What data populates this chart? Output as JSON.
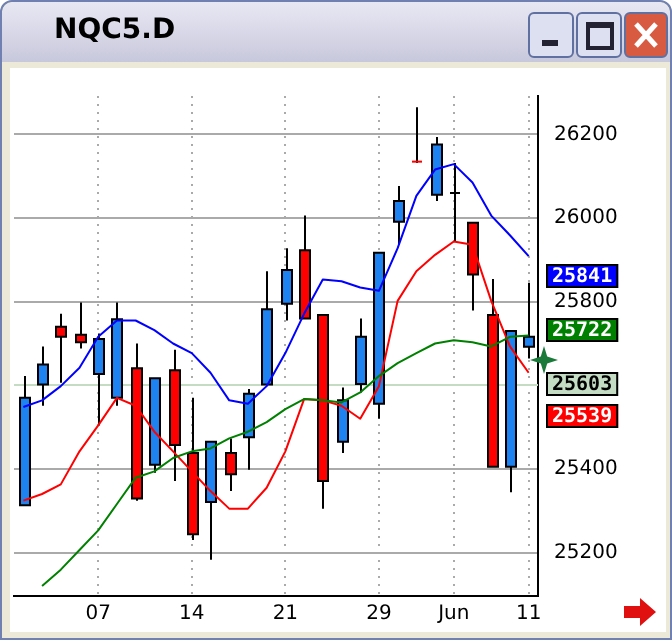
{
  "chart_data": {
    "type": "candlestick",
    "title": "NQC5.D",
    "categories": [
      null,
      null,
      null,
      null,
      "07",
      null,
      null,
      null,
      null,
      "14",
      null,
      null,
      null,
      null,
      "21",
      null,
      null,
      null,
      null,
      "29",
      null,
      null,
      null,
      "Jun",
      null,
      null,
      null,
      "11"
    ],
    "ohlc": [
      [
        25313,
        25622,
        25313,
        25570
      ],
      [
        25602,
        25693,
        25551,
        25650
      ],
      [
        25740,
        25771,
        25606,
        25716
      ],
      [
        25721,
        25798,
        25688,
        25703
      ],
      [
        25627,
        25724,
        25504,
        25711
      ],
      [
        25570,
        25798,
        25551,
        25758
      ],
      [
        25641,
        25700,
        25324,
        25329
      ],
      [
        25410,
        25617,
        25391,
        25617
      ],
      [
        25636,
        25685,
        25371,
        25457
      ],
      [
        25438,
        25570,
        25230,
        25244
      ],
      [
        25321,
        25465,
        25183,
        25465
      ],
      [
        25438,
        25473,
        25347,
        25387
      ],
      [
        25476,
        25591,
        25398,
        25580
      ],
      [
        25602,
        25873,
        25602,
        25782
      ],
      [
        25795,
        25928,
        25755,
        25876
      ],
      [
        25923,
        26006,
        25760,
        25760
      ],
      [
        25768,
        25768,
        25305,
        25371
      ],
      [
        25465,
        25595,
        25438,
        25564
      ],
      [
        25603,
        25760,
        25583,
        25716
      ],
      [
        25556,
        25917,
        25520,
        25917
      ],
      [
        25991,
        26077,
        25936,
        26041
      ],
      [
        26135,
        26265,
        26132,
        26135
      ],
      [
        26056,
        26194,
        26041,
        26176
      ],
      [
        26060,
        26132,
        25944,
        26060
      ],
      [
        25989,
        25989,
        25779,
        25865
      ],
      [
        25768,
        25854,
        25405,
        25405
      ],
      [
        25405,
        25730,
        25344,
        25730
      ],
      [
        25692,
        25845,
        25664,
        25716
      ]
    ],
    "colors": [
      "#1e82f0",
      "#1e82f0",
      "#ff0000",
      "#ff0000",
      "#1e82f0",
      "#1e82f0",
      "#ff0000",
      "#1e82f0",
      "#ff0000",
      "#ff0000",
      "#1e82f0",
      "#ff0000",
      "#1e82f0",
      "#1e82f0",
      "#1e82f0",
      "#ff0000",
      "#ff0000",
      "#1e82f0",
      "#1e82f0",
      "#1e82f0",
      "#1e82f0",
      "#ff0000",
      "#1e82f0",
      "#000000",
      "#ff0000",
      "#ff0000",
      "#1e82f0",
      "#1e82f0"
    ],
    "series": [
      {
        "type": "line",
        "color": "#0000ff",
        "values": [
          25548,
          25564,
          25598,
          25642,
          25716,
          25755,
          25755,
          25732,
          25700,
          25677,
          25630,
          25564,
          25556,
          25598,
          25677,
          25771,
          25853,
          25849,
          25834,
          25826,
          25928,
          26053,
          26116,
          26129,
          26085,
          26006,
          25959,
          25909
        ]
      },
      {
        "type": "line",
        "color": "#008000",
        "values": [
          null,
          25120,
          25159,
          25206,
          25253,
          25316,
          25379,
          25394,
          25426,
          25442,
          25449,
          25473,
          25489,
          25512,
          25543,
          25567,
          25564,
          25559,
          25583,
          25622,
          25653,
          25677,
          25700,
          25708,
          25703,
          25693,
          25716,
          25719
        ]
      },
      {
        "type": "line",
        "color": "#ff0000",
        "values": [
          25324,
          25340,
          25363,
          25442,
          25504,
          25570,
          25551,
          25489,
          25442,
          25394,
          25347,
          25305,
          25305,
          25355,
          25442,
          25567,
          25564,
          25551,
          25520,
          25598,
          25802,
          25873,
          25912,
          25944,
          25936,
          25802,
          25693,
          25630
        ]
      }
    ],
    "ylim": [
      25096,
      26292
    ],
    "yticks": [
      25200,
      25400,
      {
        "value": 25600,
        "label": null
      },
      25800,
      26000,
      26200
    ],
    "grid": true,
    "legend": false,
    "ref_lines": [
      {
        "axis": "y",
        "value": 25603,
        "label": "25603",
        "color": "#c4dcc4"
      }
    ],
    "annotations": [
      "25841",
      "25722",
      "25539"
    ]
  }
}
